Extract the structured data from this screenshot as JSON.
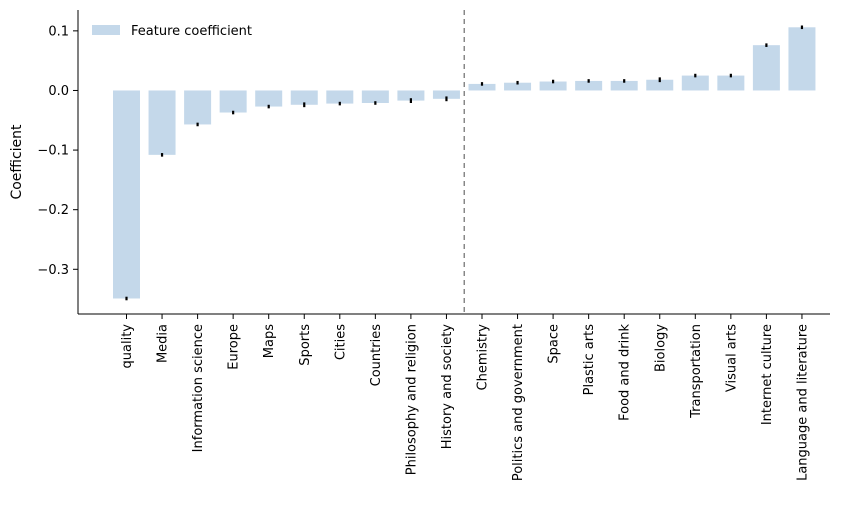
{
  "chart_data": {
    "type": "bar",
    "title": "",
    "xlabel": "",
    "ylabel": "Coefficient",
    "ylim": [
      -0.375,
      0.135
    ],
    "yticks": [
      0.1,
      0.0,
      -0.1,
      -0.2,
      -0.3
    ],
    "ytick_labels": [
      "0.1",
      "0.0",
      "−0.1",
      "−0.2",
      "−0.3"
    ],
    "grid": false,
    "legend": {
      "position": "top-left"
    },
    "bar_color": "#c4d8ea",
    "error_color": "#000000",
    "divider_color": "#777777",
    "divider_after_index": 9,
    "categories": [
      "quality",
      "Media",
      "Information science",
      "Europe",
      "Maps",
      "Sports",
      "Cities",
      "Countries",
      "Philosophy and religion",
      "History and society",
      "Chemistry",
      "Politics and government",
      "Space",
      "Plastic arts",
      "Food and drink",
      "Biology",
      "Transportation",
      "Visual arts",
      "Internet culture",
      "Language and literature"
    ],
    "series": [
      {
        "name": "Feature coefficient",
        "values": [
          -0.349,
          -0.108,
          -0.057,
          -0.037,
          -0.027,
          -0.024,
          -0.022,
          -0.021,
          -0.017,
          -0.014,
          0.011,
          0.013,
          0.015,
          0.016,
          0.016,
          0.018,
          0.025,
          0.025,
          0.076,
          0.106
        ],
        "errors": [
          0.003,
          0.003,
          0.003,
          0.003,
          0.003,
          0.004,
          0.003,
          0.003,
          0.004,
          0.004,
          0.003,
          0.003,
          0.003,
          0.003,
          0.003,
          0.004,
          0.003,
          0.003,
          0.003,
          0.003
        ]
      }
    ]
  }
}
